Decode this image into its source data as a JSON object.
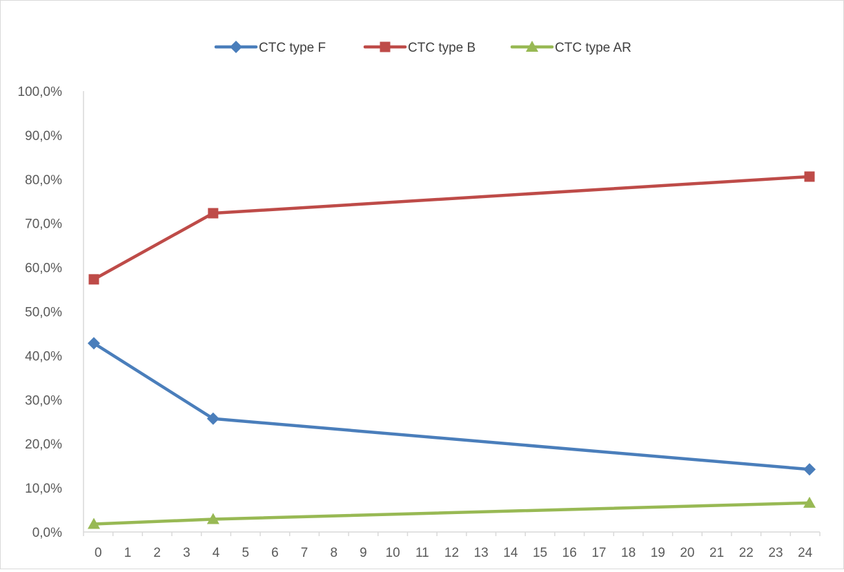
{
  "chart_data": {
    "type": "line",
    "x": [
      0,
      4,
      24
    ],
    "xlim": [
      0,
      24
    ],
    "x_ticks": [
      "0",
      "1",
      "2",
      "3",
      "4",
      "5",
      "6",
      "7",
      "8",
      "9",
      "10",
      "11",
      "12",
      "13",
      "14",
      "15",
      "16",
      "17",
      "18",
      "19",
      "20",
      "21",
      "22",
      "23",
      "24"
    ],
    "ylim": [
      0,
      100
    ],
    "y_ticks": [
      "0,0%",
      "10,0%",
      "20,0%",
      "30,0%",
      "40,0%",
      "50,0%",
      "60,0%",
      "70,0%",
      "80,0%",
      "90,0%",
      "100,0%"
    ],
    "grid": false,
    "legend_position": "top",
    "series": [
      {
        "name": "CTC type F",
        "values": [
          42.8,
          25.7,
          14.2
        ],
        "color": "#4a7ebb",
        "marker": "diamond"
      },
      {
        "name": "CTC type B",
        "values": [
          57.3,
          72.3,
          80.6
        ],
        "color": "#be4b48",
        "marker": "square"
      },
      {
        "name": "CTC type AR",
        "values": [
          1.8,
          2.9,
          6.6
        ],
        "color": "#98b954",
        "marker": "triangle"
      }
    ]
  }
}
